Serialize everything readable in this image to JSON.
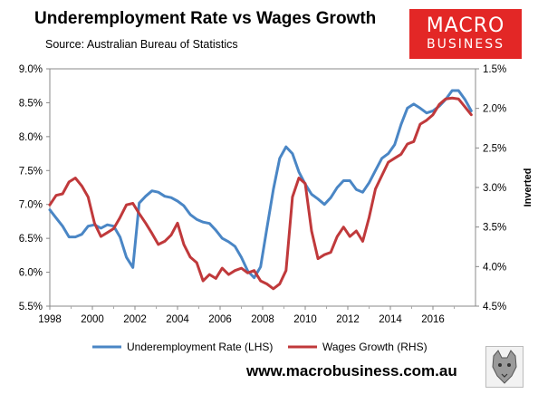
{
  "header": {
    "title": "Underemployment Rate vs Wages Growth",
    "source": "Source: Australian Bureau of Statistics"
  },
  "logo": {
    "line1": "MACRO",
    "line2": "BUSINESS",
    "background": "#e32726"
  },
  "footer": {
    "website": "www.macrobusiness.com.au",
    "badge_icon": "wolf-head-icon"
  },
  "chart_data": {
    "type": "line",
    "title": "Underemployment Rate vs Wages Growth",
    "left_axis": {
      "ylim": [
        5.5,
        9.0
      ],
      "ticks": [
        "5.5%",
        "6.0%",
        "6.5%",
        "7.0%",
        "7.5%",
        "8.0%",
        "8.5%",
        "9.0%"
      ]
    },
    "right_axis": {
      "label": "Inverted",
      "inverted": true,
      "ylim": [
        1.5,
        4.5
      ],
      "ticks": [
        "1.5%",
        "2.0%",
        "2.5%",
        "3.0%",
        "3.5%",
        "4.0%",
        "4.5%"
      ]
    },
    "x_axis": {
      "xlim": [
        1998,
        2018
      ],
      "ticks": [
        "1998",
        "2000",
        "2002",
        "2004",
        "2006",
        "2008",
        "2010",
        "2012",
        "2014",
        "2016"
      ]
    },
    "grid": false,
    "legend_position": "bottom",
    "series": [
      {
        "name": "Underemployment Rate (LHS)",
        "axis": "left",
        "color": "#4a86c5",
        "x": [
          1998.0,
          1998.3,
          1998.6,
          1998.9,
          1999.2,
          1999.5,
          1999.8,
          2000.1,
          2000.4,
          2000.7,
          2001.0,
          2001.3,
          2001.6,
          2001.9,
          2002.2,
          2002.5,
          2002.8,
          2003.1,
          2003.4,
          2003.7,
          2004.0,
          2004.3,
          2004.6,
          2004.9,
          2005.2,
          2005.5,
          2005.8,
          2006.1,
          2006.4,
          2006.7,
          2007.0,
          2007.3,
          2007.6,
          2007.9,
          2008.2,
          2008.5,
          2008.8,
          2009.1,
          2009.4,
          2009.7,
          2010.0,
          2010.3,
          2010.6,
          2010.9,
          2011.2,
          2011.5,
          2011.8,
          2012.1,
          2012.4,
          2012.7,
          2013.0,
          2013.3,
          2013.6,
          2013.9,
          2014.2,
          2014.5,
          2014.8,
          2015.1,
          2015.4,
          2015.7,
          2016.0,
          2016.3,
          2016.6,
          2016.9,
          2017.2,
          2017.5,
          2017.8
        ],
        "values": [
          6.92,
          6.8,
          6.68,
          6.52,
          6.52,
          6.56,
          6.68,
          6.7,
          6.65,
          6.7,
          6.68,
          6.52,
          6.22,
          6.07,
          7.02,
          7.12,
          7.2,
          7.18,
          7.12,
          7.1,
          7.05,
          6.98,
          6.85,
          6.78,
          6.74,
          6.72,
          6.62,
          6.5,
          6.45,
          6.38,
          6.22,
          6.02,
          5.92,
          6.08,
          6.65,
          7.22,
          7.68,
          7.85,
          7.75,
          7.48,
          7.3,
          7.15,
          7.08,
          7.0,
          7.1,
          7.25,
          7.35,
          7.35,
          7.22,
          7.18,
          7.32,
          7.5,
          7.68,
          7.75,
          7.88,
          8.18,
          8.42,
          8.48,
          8.42,
          8.35,
          8.38,
          8.45,
          8.55,
          8.68,
          8.68,
          8.55,
          8.38
        ]
      },
      {
        "name": "Wages Growth (RHS)",
        "axis": "right",
        "color": "#c0393b",
        "x": [
          1998.0,
          1998.3,
          1998.6,
          1998.9,
          1999.2,
          1999.5,
          1999.8,
          2000.1,
          2000.4,
          2000.7,
          2001.0,
          2001.3,
          2001.6,
          2001.9,
          2002.2,
          2002.5,
          2002.8,
          2003.1,
          2003.4,
          2003.7,
          2004.0,
          2004.3,
          2004.6,
          2004.9,
          2005.2,
          2005.5,
          2005.8,
          2006.1,
          2006.4,
          2006.7,
          2007.0,
          2007.3,
          2007.6,
          2007.9,
          2008.2,
          2008.5,
          2008.8,
          2009.1,
          2009.4,
          2009.7,
          2010.0,
          2010.3,
          2010.6,
          2010.9,
          2011.2,
          2011.5,
          2011.8,
          2012.1,
          2012.4,
          2012.7,
          2013.0,
          2013.3,
          2013.6,
          2013.9,
          2014.2,
          2014.5,
          2014.8,
          2015.1,
          2015.4,
          2015.7,
          2016.0,
          2016.3,
          2016.6,
          2016.9,
          2017.2,
          2017.5,
          2017.8
        ],
        "values": [
          3.22,
          3.1,
          3.08,
          2.93,
          2.88,
          2.98,
          3.12,
          3.45,
          3.62,
          3.57,
          3.52,
          3.38,
          3.22,
          3.2,
          3.33,
          3.45,
          3.58,
          3.72,
          3.68,
          3.6,
          3.45,
          3.72,
          3.88,
          3.95,
          4.18,
          4.1,
          4.15,
          4.02,
          4.1,
          4.05,
          4.02,
          4.08,
          4.05,
          4.18,
          4.22,
          4.28,
          4.22,
          4.05,
          3.12,
          2.88,
          2.95,
          3.55,
          3.9,
          3.85,
          3.82,
          3.62,
          3.5,
          3.62,
          3.55,
          3.68,
          3.38,
          3.02,
          2.85,
          2.68,
          2.63,
          2.58,
          2.45,
          2.42,
          2.2,
          2.15,
          2.08,
          1.95,
          1.88,
          1.87,
          1.88,
          1.98,
          2.08
        ]
      }
    ]
  }
}
